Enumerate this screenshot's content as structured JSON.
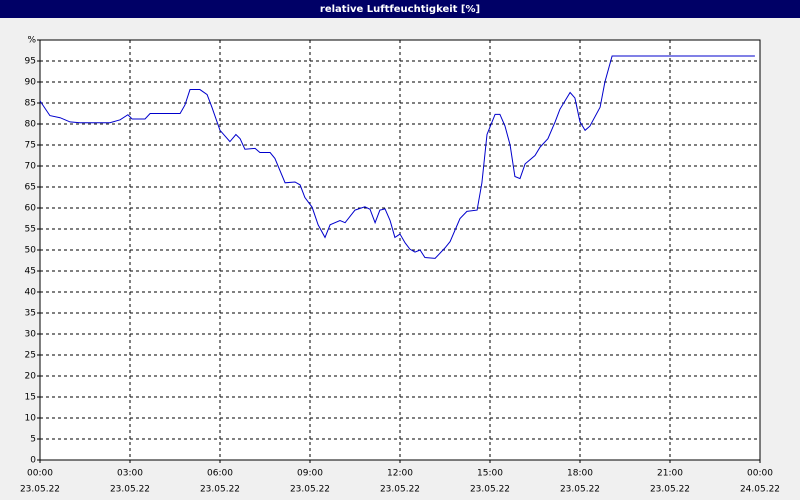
{
  "chart_data": {
    "type": "line",
    "title": "relative Luftfeuchtigkeit [%]",
    "xlim": [
      0,
      24
    ],
    "xticks": [
      {
        "value": 0,
        "label": "00:00",
        "date": "23.05.22"
      },
      {
        "value": 3,
        "label": "03:00",
        "date": "23.05.22"
      },
      {
        "value": 6,
        "label": "06:00",
        "date": "23.05.22"
      },
      {
        "value": 9,
        "label": "09:00",
        "date": "23.05.22"
      },
      {
        "value": 12,
        "label": "12:00",
        "date": "23.05.22"
      },
      {
        "value": 15,
        "label": "15:00",
        "date": "23.05.22"
      },
      {
        "value": 18,
        "label": "18:00",
        "date": "23.05.22"
      },
      {
        "value": 21,
        "label": "21:00",
        "date": "23.05.22"
      },
      {
        "value": 24,
        "label": "00:00",
        "date": "24.05.22"
      }
    ],
    "ylim": [
      0,
      100
    ],
    "yticks": [
      0,
      5,
      10,
      15,
      20,
      25,
      30,
      35,
      40,
      45,
      50,
      55,
      60,
      65,
      70,
      75,
      80,
      85,
      90,
      95,
      {
        "value": 100,
        "label": "%"
      }
    ],
    "grid": true,
    "color": "#0000cc",
    "x": [
      0,
      0.33,
      0.67,
      1,
      1.33,
      2,
      2.33,
      2.67,
      2.93,
      3.07,
      3.5,
      3.67,
      4,
      4.67,
      4.83,
      5,
      5.33,
      5.57,
      5.73,
      6,
      6.33,
      6.53,
      6.67,
      6.83,
      7.17,
      7.33,
      7.67,
      7.83,
      8.17,
      8.5,
      8.67,
      8.83,
      9.07,
      9.27,
      9.5,
      9.67,
      10,
      10.17,
      10.5,
      10.83,
      11,
      11.17,
      11.33,
      11.5,
      11.67,
      11.83,
      12,
      12.17,
      12.33,
      12.5,
      12.67,
      12.83,
      13.17,
      13.5,
      13.67,
      14,
      14.23,
      14.57,
      14.73,
      14.9,
      15.17,
      15.33,
      15.5,
      15.67,
      15.83,
      16,
      16.17,
      16.5,
      16.67,
      16.93,
      17.17,
      17.33,
      17.67,
      17.83,
      18,
      18.17,
      18.33,
      18.67,
      18.83,
      19.07,
      23.83
    ],
    "values": [
      85.5,
      82,
      81.5,
      80.5,
      80.3,
      80.3,
      80.3,
      81,
      82.2,
      81.2,
      81.2,
      82.5,
      82.5,
      82.5,
      84.5,
      88.2,
      88.2,
      87,
      84,
      78.5,
      75.8,
      77.5,
      76.5,
      74,
      74.2,
      73.2,
      73.2,
      71.8,
      66,
      66.2,
      65.5,
      62.5,
      60.2,
      56,
      53,
      56,
      57,
      56.5,
      59.5,
      60.3,
      59.7,
      56.5,
      59.5,
      59.8,
      57,
      53,
      53.8,
      51.7,
      50.2,
      49.5,
      50,
      48.2,
      48,
      50.5,
      52,
      57.5,
      59.2,
      59.5,
      66,
      77.5,
      82.3,
      82.3,
      79.5,
      75,
      67.5,
      67,
      70.5,
      72.5,
      74.5,
      76.5,
      80.5,
      83.5,
      87.5,
      86.2,
      80.5,
      78.5,
      79.5,
      84,
      90,
      96.2,
      96.2
    ]
  }
}
